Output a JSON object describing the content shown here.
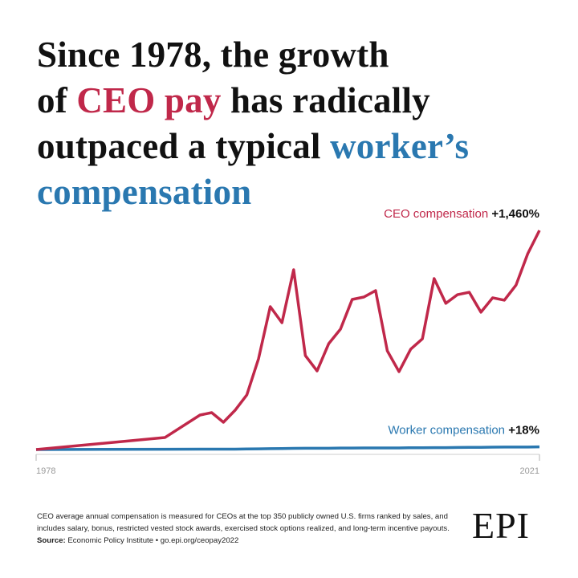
{
  "chart_data": {
    "type": "line",
    "title": [
      {
        "text": "Since 1978, the growth",
        "color": "#111111"
      },
      {
        "text": "of ",
        "color": "#111111"
      },
      {
        "text": "CEO pay",
        "color": "#c0284a"
      },
      {
        "text": " has radically",
        "color": "#111111"
      },
      {
        "text": "outpaced a typical ",
        "color": "#111111"
      },
      {
        "text": "worker’s",
        "color": "#2a78b0"
      },
      {
        "text": "compensation",
        "color": "#2a78b0"
      }
    ],
    "x": [
      1978,
      1989,
      1992,
      1993,
      1994,
      1995,
      1996,
      1997,
      1998,
      1999,
      2000,
      2001,
      2002,
      2003,
      2004,
      2005,
      2006,
      2007,
      2008,
      2009,
      2010,
      2011,
      2012,
      2013,
      2014,
      2015,
      2016,
      2017,
      2018,
      2019,
      2020,
      2021
    ],
    "xlim": [
      1978,
      2021
    ],
    "xticks": [
      1978,
      2021
    ],
    "ylim": [
      0,
      1460
    ],
    "series": [
      {
        "name": "CEO compensation",
        "color": "#c0284a",
        "values": [
          0,
          80,
          230,
          246,
          182,
          262,
          364,
          605,
          952,
          845,
          1198,
          626,
          524,
          706,
          802,
          1000,
          1016,
          1059,
          658,
          519,
          669,
          738,
          1139,
          974,
          1032,
          1048,
          915,
          1011,
          995,
          1096,
          1305,
          1460
        ],
        "value_labels": [
          null,
          null,
          null,
          null,
          null,
          null,
          null,
          null,
          null,
          null,
          null,
          null,
          null,
          null,
          null,
          null,
          null,
          null,
          null,
          null,
          null,
          null,
          null,
          null,
          null,
          null,
          null,
          null,
          null,
          null,
          null,
          "+1,460%"
        ]
      },
      {
        "name": "Worker compensation",
        "color": "#2a78b0",
        "values": [
          0,
          2,
          3,
          3,
          3,
          3,
          4,
          5,
          6,
          7,
          8,
          9,
          9,
          9,
          10,
          10,
          11,
          11,
          11,
          11,
          12,
          12,
          13,
          13,
          14,
          15,
          15,
          16,
          17,
          17,
          17,
          18
        ],
        "value_labels": [
          null,
          null,
          null,
          null,
          null,
          null,
          null,
          null,
          null,
          null,
          null,
          null,
          null,
          null,
          null,
          null,
          null,
          null,
          null,
          null,
          null,
          null,
          null,
          null,
          null,
          null,
          null,
          null,
          null,
          null,
          null,
          "+18%"
        ]
      }
    ],
    "footnote": "CEO average annual compensation is measured for CEOs at the top 350 publicly owned U.S. firms ranked by sales, and includes salary, bonus, restricted vested stock awards, exercised stock options realized, and long-term incentive payouts.",
    "source_label": "Source:",
    "source": "Economic Policy Institute • go.epi.org/ceopay2022",
    "logo": "EPI"
  }
}
